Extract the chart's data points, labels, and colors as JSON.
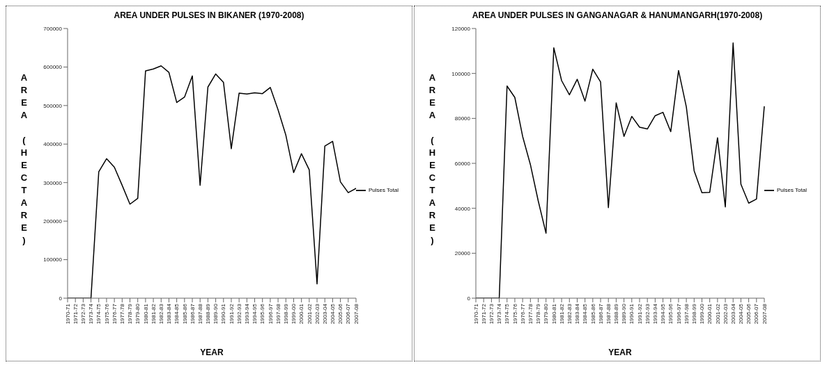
{
  "chart_data": [
    {
      "type": "line",
      "title": "AREA UNDER PULSES IN BIKANER (1970-2008)",
      "xlabel": "YEAR",
      "ylabel": "AREA (HECTARE)",
      "categories": [
        "1970-71",
        "1971-72",
        "1972-73",
        "1973-74",
        "1974-75",
        "1975-76",
        "1976-77",
        "1977-78",
        "1978-79",
        "1979-80",
        "1980-81",
        "1981-82",
        "1982-83",
        "1983-84",
        "1984-85",
        "1985-86",
        "1986-87",
        "1987-88",
        "1988-89",
        "1989-90",
        "1990-91",
        "1991-92",
        "1992-93",
        "1993-94",
        "1994-95",
        "1995-96",
        "1996-97",
        "1997-98",
        "1998-99",
        "1999-00",
        "2000-01",
        "2001-02",
        "2002-03",
        "2003-04",
        "2004-05",
        "2005-06",
        "2006-07",
        "2007-08"
      ],
      "series": [
        {
          "name": "Pulses Total",
          "color": "#000000",
          "values": [
            0,
            0,
            0,
            0,
            328000,
            362000,
            340000,
            293000,
            244000,
            259000,
            590000,
            595000,
            603000,
            586000,
            508000,
            522000,
            577000,
            293000,
            548000,
            582000,
            560000,
            388000,
            532000,
            530000,
            533000,
            531000,
            547000,
            489000,
            423000,
            326000,
            375000,
            333000,
            37000,
            395000,
            407000,
            302000,
            274000,
            285000
          ]
        }
      ],
      "ylim": [
        0,
        700000
      ],
      "yticks": [
        0,
        100000,
        200000,
        300000,
        400000,
        500000,
        600000,
        700000
      ],
      "grid": false,
      "legend": "right",
      "marker": "none",
      "line_style": "solid"
    },
    {
      "type": "line",
      "title": "AREA UNDER PULSES IN GANGANAGAR & HANUMANGARH(1970-2008)",
      "xlabel": "YEAR",
      "ylabel": "AREA (HECTARE)",
      "categories": [
        "1970-71",
        "1971-72",
        "1972-73",
        "1973-74",
        "1974-75",
        "1975-76",
        "1976-77",
        "1977-78",
        "1978-79",
        "1979-80",
        "1980-81",
        "1981-82",
        "1982-83",
        "1983-84",
        "1984-85",
        "1985-86",
        "1986-87",
        "1987-88",
        "1988-89",
        "1989-90",
        "1990-91",
        "1991-92",
        "1992-93",
        "1993-94",
        "1994-95",
        "1995-96",
        "1996-97",
        "1997-98",
        "1998-99",
        "1999-00",
        "2000-01",
        "2001-02",
        "2002-03",
        "2003-04",
        "2004-05",
        "2005-06",
        "2006-07",
        "2007-08"
      ],
      "series": [
        {
          "name": "Pulses Total",
          "color": "#000000",
          "values": [
            0,
            0,
            0,
            0,
            94400,
            89300,
            72000,
            59400,
            43300,
            28900,
            111400,
            96800,
            90500,
            97400,
            87700,
            101900,
            96200,
            40300,
            86900,
            72000,
            80900,
            76100,
            75300,
            81200,
            82700,
            74100,
            101300,
            85100,
            56700,
            46900,
            47100,
            71400,
            40600,
            113600,
            50700,
            42300,
            44100,
            85400
          ]
        }
      ],
      "ylim": [
        0,
        120000
      ],
      "yticks": [
        0,
        20000,
        40000,
        60000,
        80000,
        100000,
        120000
      ],
      "grid": false,
      "legend": "right",
      "marker": "none",
      "line_style": "solid"
    }
  ]
}
